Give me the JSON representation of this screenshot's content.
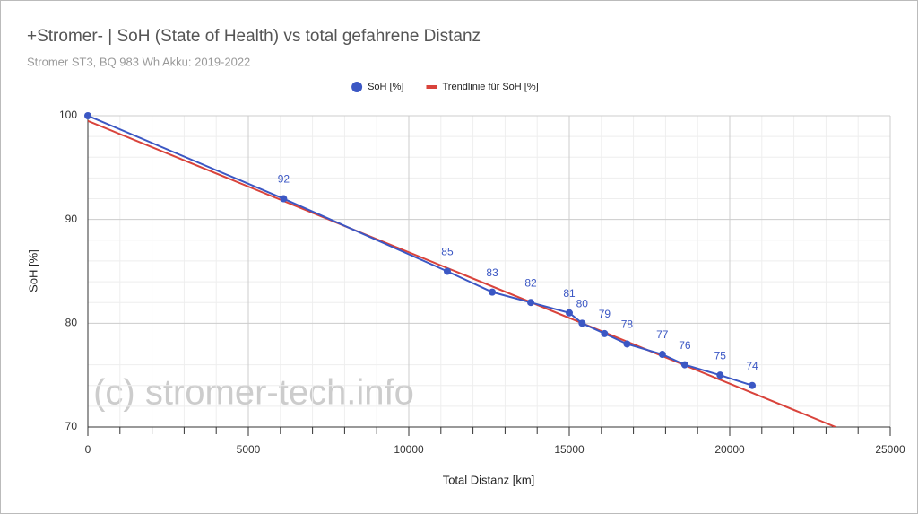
{
  "chart_data": {
    "type": "scatter",
    "title": "+Stromer- | SoH (State of Health) vs total gefahrene Distanz",
    "subtitle": "Stromer ST3, BQ 983 Wh Akku: 2019-2022",
    "x_label": "Total Distanz [km]",
    "y_label": "SoH [%]",
    "annotation": "(c) stromer-tech.info",
    "xlim": [
      0,
      25000
    ],
    "xticks": [
      0,
      5000,
      10000,
      15000,
      20000,
      25000
    ],
    "ylim": [
      70,
      100
    ],
    "yticks": [
      70,
      80,
      90,
      100
    ],
    "grid": true,
    "legend": "top",
    "series": [
      {
        "name": "SoH [%]",
        "color": "#3b57c4",
        "kind": "line-points",
        "x": [
          0,
          6100,
          11200,
          12600,
          13800,
          15000,
          15400,
          16100,
          16800,
          17900,
          18600,
          19700,
          20700
        ],
        "values": [
          100,
          92,
          85,
          83,
          82,
          81,
          80,
          79,
          78,
          77,
          76,
          75,
          74
        ],
        "value_labels": [
          null,
          "92",
          "85",
          "83",
          "82",
          "81",
          "80",
          "79",
          "78",
          "77",
          "76",
          "75",
          "74"
        ]
      },
      {
        "name": "Trendlinie für SoH [%]",
        "color": "#d9433b",
        "kind": "line",
        "x": [
          0,
          23300
        ],
        "values": [
          99.5,
          70
        ]
      }
    ]
  }
}
